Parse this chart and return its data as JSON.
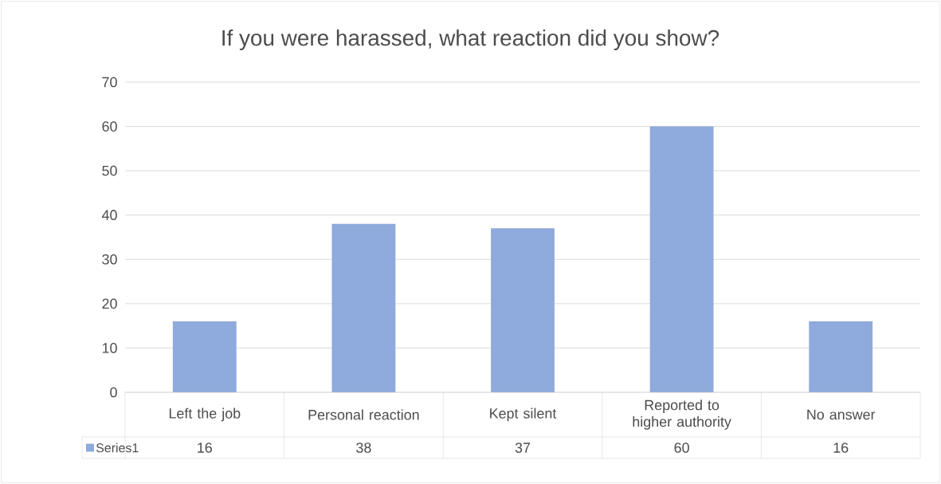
{
  "chart_data": {
    "type": "bar",
    "title": "If you were harassed, what reaction did you show?",
    "categories": [
      "Left the job",
      "Personal reaction",
      "Kept silent",
      "Reported to higher authority",
      "No answer"
    ],
    "series": [
      {
        "name": "Series1",
        "color": "#8faadc",
        "values": [
          16,
          38,
          37,
          60,
          16
        ]
      }
    ],
    "ylim": [
      0,
      70
    ],
    "yticks": [
      0,
      10,
      20,
      30,
      40,
      50,
      60,
      70
    ],
    "grid": "y",
    "legend": "bottom",
    "data_labels": true
  }
}
